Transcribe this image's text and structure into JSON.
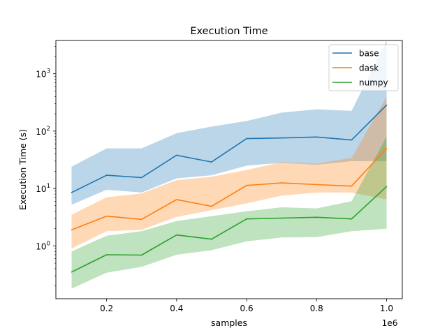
{
  "chart_data": {
    "type": "line",
    "title": "Execution Time",
    "xlabel": "samples",
    "ylabel": "Execution Time (s)",
    "x_offset_label": "1e6",
    "x": [
      100000,
      200000,
      300000,
      400000,
      500000,
      600000,
      700000,
      800000,
      900000,
      1000000
    ],
    "xlim": [
      55000,
      1045000
    ],
    "x_ticks": [
      {
        "value": 200000,
        "label": "0.2"
      },
      {
        "value": 400000,
        "label": "0.4"
      },
      {
        "value": 600000,
        "label": "0.6"
      },
      {
        "value": 800000,
        "label": "0.8"
      },
      {
        "value": 1000000,
        "label": "1.0"
      }
    ],
    "yscale": "log",
    "ylim": [
      0.12,
      3800
    ],
    "y_ticks": [
      {
        "value": 1,
        "mantissa": "10",
        "exp": "0"
      },
      {
        "value": 10,
        "mantissa": "10",
        "exp": "1"
      },
      {
        "value": 100,
        "mantissa": "10",
        "exp": "2"
      },
      {
        "value": 1000,
        "mantissa": "10",
        "exp": "3"
      }
    ],
    "legend_position": "top-right",
    "grid": false,
    "series": [
      {
        "name": "base",
        "color": "#1f77b4",
        "values": [
          8.5,
          17,
          15.5,
          38,
          29,
          74,
          76,
          79,
          70,
          285
        ],
        "lower": [
          5.2,
          9.5,
          8.5,
          15,
          17,
          25,
          28,
          26,
          30,
          30
        ],
        "upper": [
          24,
          50,
          50,
          92,
          120,
          150,
          210,
          240,
          225,
          4000
        ]
      },
      {
        "name": "dask",
        "color": "#ff7f0e",
        "values": [
          1.9,
          3.3,
          2.9,
          6.4,
          4.9,
          11.3,
          12.5,
          11.7,
          11,
          50
        ],
        "lower": [
          0.9,
          1.8,
          1.9,
          3.2,
          4.2,
          5.5,
          7.5,
          8.5,
          8.5,
          6.5
        ],
        "upper": [
          3.5,
          7,
          8.2,
          14,
          16,
          21,
          29,
          27,
          34,
          400
        ]
      },
      {
        "name": "numpy",
        "color": "#2ca02c",
        "values": [
          0.35,
          0.7,
          0.69,
          1.55,
          1.31,
          2.95,
          3.05,
          3.15,
          2.95,
          10.8
        ],
        "lower": [
          0.18,
          0.34,
          0.43,
          0.7,
          0.84,
          1.2,
          1.4,
          1.42,
          1.8,
          2.0
        ],
        "upper": [
          0.8,
          1.5,
          1.8,
          2.7,
          3.3,
          4.0,
          4.7,
          4.5,
          6.0,
          80
        ]
      }
    ]
  }
}
